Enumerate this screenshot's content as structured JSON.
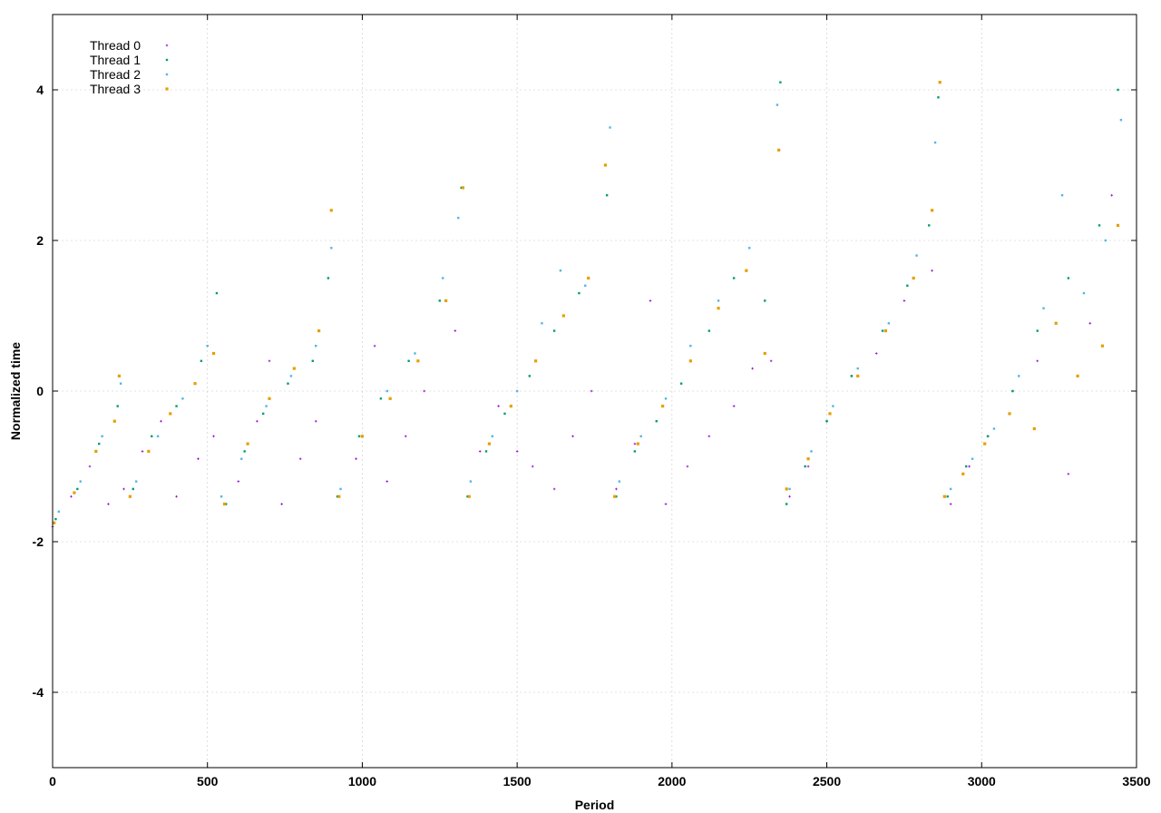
{
  "chart_data": {
    "type": "scatter",
    "title": "",
    "xlabel": "Period",
    "ylabel": "Normalized time",
    "xlim": [
      0,
      3500
    ],
    "ylim": [
      -5,
      5
    ],
    "xticks": [
      0,
      500,
      1000,
      1500,
      2000,
      2500,
      3000,
      3500
    ],
    "yticks": [
      -4,
      -2,
      0,
      2,
      4
    ],
    "grid": true,
    "legend_position": "top-left",
    "sawtooth_segments": [
      [
        0,
        220
      ],
      [
        225,
        530
      ],
      [
        535,
        900
      ],
      [
        905,
        1330
      ],
      [
        1335,
        1800
      ],
      [
        1805,
        2350
      ],
      [
        2355,
        2870
      ],
      [
        2875,
        3450
      ]
    ],
    "series": [
      {
        "name": "Thread 0",
        "color": "#9400d3",
        "marker": "plus",
        "points": [
          [
            0,
            -1.8
          ],
          [
            60,
            -1.4
          ],
          [
            120,
            -1.0
          ],
          [
            180,
            -1.5
          ],
          [
            230,
            -1.3
          ],
          [
            290,
            -0.8
          ],
          [
            350,
            -0.4
          ],
          [
            400,
            -1.4
          ],
          [
            470,
            -0.9
          ],
          [
            520,
            -0.6
          ],
          [
            600,
            -1.2
          ],
          [
            660,
            -0.4
          ],
          [
            700,
            0.4
          ],
          [
            740,
            -1.5
          ],
          [
            800,
            -0.9
          ],
          [
            850,
            -0.4
          ],
          [
            920,
            -1.4
          ],
          [
            980,
            -0.9
          ],
          [
            1040,
            0.6
          ],
          [
            1080,
            -1.2
          ],
          [
            1140,
            -0.6
          ],
          [
            1200,
            0.0
          ],
          [
            1300,
            0.8
          ],
          [
            1380,
            -0.8
          ],
          [
            1440,
            -0.2
          ],
          [
            1500,
            -0.8
          ],
          [
            1550,
            -1.0
          ],
          [
            1620,
            -1.3
          ],
          [
            1680,
            -0.6
          ],
          [
            1740,
            0.0
          ],
          [
            1820,
            -1.3
          ],
          [
            1880,
            -0.7
          ],
          [
            1930,
            1.2
          ],
          [
            1980,
            -1.5
          ],
          [
            2050,
            -1.0
          ],
          [
            2120,
            -0.6
          ],
          [
            2200,
            -0.2
          ],
          [
            2260,
            0.3
          ],
          [
            2320,
            0.4
          ],
          [
            2380,
            -1.4
          ],
          [
            2440,
            -1.0
          ],
          [
            2500,
            -0.4
          ],
          [
            2580,
            0.2
          ],
          [
            2660,
            0.5
          ],
          [
            2750,
            1.2
          ],
          [
            2840,
            1.6
          ],
          [
            2900,
            -1.5
          ],
          [
            2960,
            -1.0
          ],
          [
            3020,
            -0.6
          ],
          [
            3100,
            0.0
          ],
          [
            3180,
            0.4
          ],
          [
            3280,
            -1.1
          ],
          [
            3350,
            0.9
          ],
          [
            3420,
            2.6
          ]
        ]
      },
      {
        "name": "Thread 1",
        "color": "#009e73",
        "marker": "square-small",
        "points": [
          [
            10,
            -1.7
          ],
          [
            80,
            -1.3
          ],
          [
            150,
            -0.7
          ],
          [
            210,
            -0.2
          ],
          [
            260,
            -1.3
          ],
          [
            320,
            -0.6
          ],
          [
            400,
            -0.2
          ],
          [
            480,
            0.4
          ],
          [
            530,
            1.3
          ],
          [
            560,
            -1.5
          ],
          [
            620,
            -0.8
          ],
          [
            680,
            -0.3
          ],
          [
            760,
            0.1
          ],
          [
            840,
            0.4
          ],
          [
            890,
            1.5
          ],
          [
            920,
            -1.4
          ],
          [
            990,
            -0.6
          ],
          [
            1060,
            -0.1
          ],
          [
            1150,
            0.4
          ],
          [
            1250,
            1.2
          ],
          [
            1320,
            2.7
          ],
          [
            1340,
            -1.4
          ],
          [
            1400,
            -0.8
          ],
          [
            1460,
            -0.3
          ],
          [
            1540,
            0.2
          ],
          [
            1620,
            0.8
          ],
          [
            1700,
            1.3
          ],
          [
            1790,
            2.6
          ],
          [
            1820,
            -1.4
          ],
          [
            1880,
            -0.8
          ],
          [
            1950,
            -0.4
          ],
          [
            2030,
            0.1
          ],
          [
            2120,
            0.8
          ],
          [
            2200,
            1.5
          ],
          [
            2300,
            1.2
          ],
          [
            2350,
            4.1
          ],
          [
            2370,
            -1.5
          ],
          [
            2430,
            -1.0
          ],
          [
            2500,
            -0.4
          ],
          [
            2580,
            0.2
          ],
          [
            2680,
            0.8
          ],
          [
            2760,
            1.4
          ],
          [
            2830,
            2.2
          ],
          [
            2860,
            3.9
          ],
          [
            2890,
            -1.4
          ],
          [
            2950,
            -1.0
          ],
          [
            3020,
            -0.6
          ],
          [
            3100,
            0.0
          ],
          [
            3180,
            0.8
          ],
          [
            3280,
            1.5
          ],
          [
            3380,
            2.2
          ],
          [
            3440,
            4.0
          ]
        ]
      },
      {
        "name": "Thread 2",
        "color": "#56b4e9",
        "marker": "square-small",
        "points": [
          [
            20,
            -1.6
          ],
          [
            90,
            -1.2
          ],
          [
            160,
            -0.6
          ],
          [
            220,
            0.1
          ],
          [
            270,
            -1.2
          ],
          [
            340,
            -0.6
          ],
          [
            420,
            -0.1
          ],
          [
            500,
            0.6
          ],
          [
            545,
            -1.4
          ],
          [
            610,
            -0.9
          ],
          [
            690,
            -0.2
          ],
          [
            770,
            0.2
          ],
          [
            850,
            0.6
          ],
          [
            900,
            1.9
          ],
          [
            930,
            -1.3
          ],
          [
            1000,
            -0.6
          ],
          [
            1080,
            0.0
          ],
          [
            1170,
            0.5
          ],
          [
            1260,
            1.5
          ],
          [
            1310,
            2.3
          ],
          [
            1350,
            -1.2
          ],
          [
            1420,
            -0.6
          ],
          [
            1500,
            0.0
          ],
          [
            1580,
            0.9
          ],
          [
            1640,
            1.6
          ],
          [
            1720,
            1.4
          ],
          [
            1800,
            3.5
          ],
          [
            1830,
            -1.2
          ],
          [
            1900,
            -0.6
          ],
          [
            1980,
            -0.1
          ],
          [
            2060,
            0.6
          ],
          [
            2150,
            1.2
          ],
          [
            2250,
            1.9
          ],
          [
            2340,
            3.8
          ],
          [
            2380,
            -1.3
          ],
          [
            2450,
            -0.8
          ],
          [
            2520,
            -0.2
          ],
          [
            2600,
            0.3
          ],
          [
            2700,
            0.9
          ],
          [
            2790,
            1.8
          ],
          [
            2850,
            3.3
          ],
          [
            2900,
            -1.3
          ],
          [
            2970,
            -0.9
          ],
          [
            3040,
            -0.5
          ],
          [
            3120,
            0.2
          ],
          [
            3200,
            1.1
          ],
          [
            3260,
            2.6
          ],
          [
            3330,
            1.3
          ],
          [
            3400,
            2.0
          ],
          [
            3450,
            3.6
          ]
        ]
      },
      {
        "name": "Thread 3",
        "color": "#e69f00",
        "marker": "square",
        "points": [
          [
            5,
            -1.75
          ],
          [
            70,
            -1.35
          ],
          [
            140,
            -0.8
          ],
          [
            200,
            -0.4
          ],
          [
            215,
            0.2
          ],
          [
            250,
            -1.4
          ],
          [
            310,
            -0.8
          ],
          [
            380,
            -0.3
          ],
          [
            460,
            0.1
          ],
          [
            520,
            0.5
          ],
          [
            555,
            -1.5
          ],
          [
            630,
            -0.7
          ],
          [
            700,
            -0.1
          ],
          [
            780,
            0.3
          ],
          [
            860,
            0.8
          ],
          [
            900,
            2.4
          ],
          [
            925,
            -1.4
          ],
          [
            1000,
            -0.6
          ],
          [
            1090,
            -0.1
          ],
          [
            1180,
            0.4
          ],
          [
            1270,
            1.2
          ],
          [
            1325,
            2.7
          ],
          [
            1345,
            -1.4
          ],
          [
            1410,
            -0.7
          ],
          [
            1480,
            -0.2
          ],
          [
            1560,
            0.4
          ],
          [
            1650,
            1.0
          ],
          [
            1730,
            1.5
          ],
          [
            1785,
            3.0
          ],
          [
            1815,
            -1.4
          ],
          [
            1890,
            -0.7
          ],
          [
            1970,
            -0.2
          ],
          [
            2060,
            0.4
          ],
          [
            2150,
            1.1
          ],
          [
            2240,
            1.6
          ],
          [
            2300,
            0.5
          ],
          [
            2345,
            3.2
          ],
          [
            2370,
            -1.3
          ],
          [
            2440,
            -0.9
          ],
          [
            2510,
            -0.3
          ],
          [
            2600,
            0.2
          ],
          [
            2690,
            0.8
          ],
          [
            2780,
            1.5
          ],
          [
            2840,
            2.4
          ],
          [
            2865,
            4.1
          ],
          [
            2880,
            -1.4
          ],
          [
            2940,
            -1.1
          ],
          [
            3010,
            -0.7
          ],
          [
            3090,
            -0.3
          ],
          [
            3170,
            -0.5
          ],
          [
            3240,
            0.9
          ],
          [
            3310,
            0.2
          ],
          [
            3390,
            0.6
          ],
          [
            3440,
            2.2
          ]
        ]
      }
    ]
  }
}
